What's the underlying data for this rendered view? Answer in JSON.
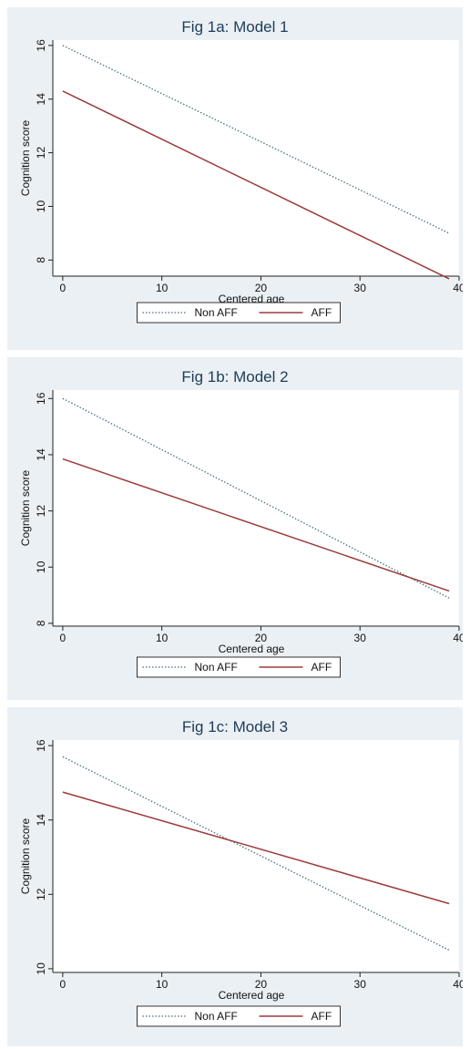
{
  "chart_data": [
    {
      "type": "line",
      "title": "Fig 1a: Model 1",
      "xlabel": "Centered age",
      "ylabel": "Cognition score",
      "xlim": [
        -1,
        40
      ],
      "ylim": [
        7.4,
        16.2
      ],
      "xticks": [
        0,
        10,
        20,
        30,
        40
      ],
      "yticks": [
        8,
        10,
        12,
        14,
        16
      ],
      "series": [
        {
          "name": "Non AFF",
          "style": "dotted",
          "color": "#4a6f7f",
          "x": [
            0,
            39
          ],
          "y": [
            16.0,
            9.0
          ]
        },
        {
          "name": "AFF",
          "style": "solid",
          "color": "#9b3b3b",
          "x": [
            0,
            39
          ],
          "y": [
            14.3,
            7.3
          ]
        }
      ],
      "legend": "bottom-center",
      "grid": false
    },
    {
      "type": "line",
      "title": "Fig 1b: Model 2",
      "xlabel": "Centered age",
      "ylabel": "Cognition score",
      "xlim": [
        -1,
        40
      ],
      "ylim": [
        7.9,
        16.3
      ],
      "xticks": [
        0,
        10,
        20,
        30,
        40
      ],
      "yticks": [
        8,
        10,
        12,
        14,
        16
      ],
      "series": [
        {
          "name": "Non AFF",
          "style": "dotted",
          "color": "#4a6f7f",
          "x": [
            0,
            39
          ],
          "y": [
            16.0,
            8.9
          ]
        },
        {
          "name": "AFF",
          "style": "solid",
          "color": "#9b3b3b",
          "x": [
            0,
            39
          ],
          "y": [
            13.85,
            9.15
          ]
        }
      ],
      "legend": "bottom-center",
      "grid": false
    },
    {
      "type": "line",
      "title": "Fig 1c: Model 3",
      "xlabel": "Centered age",
      "ylabel": "Cognition score",
      "xlim": [
        -1,
        40
      ],
      "ylim": [
        9.9,
        16.15
      ],
      "xticks": [
        0,
        10,
        20,
        30,
        40
      ],
      "yticks": [
        10,
        12,
        14,
        16
      ],
      "series": [
        {
          "name": "Non AFF",
          "style": "dotted",
          "color": "#4a6f7f",
          "x": [
            0,
            39
          ],
          "y": [
            15.7,
            10.5
          ]
        },
        {
          "name": "AFF",
          "style": "solid",
          "color": "#9b3b3b",
          "x": [
            0,
            39
          ],
          "y": [
            14.75,
            11.75
          ]
        }
      ],
      "legend": "bottom-center",
      "grid": false
    }
  ]
}
